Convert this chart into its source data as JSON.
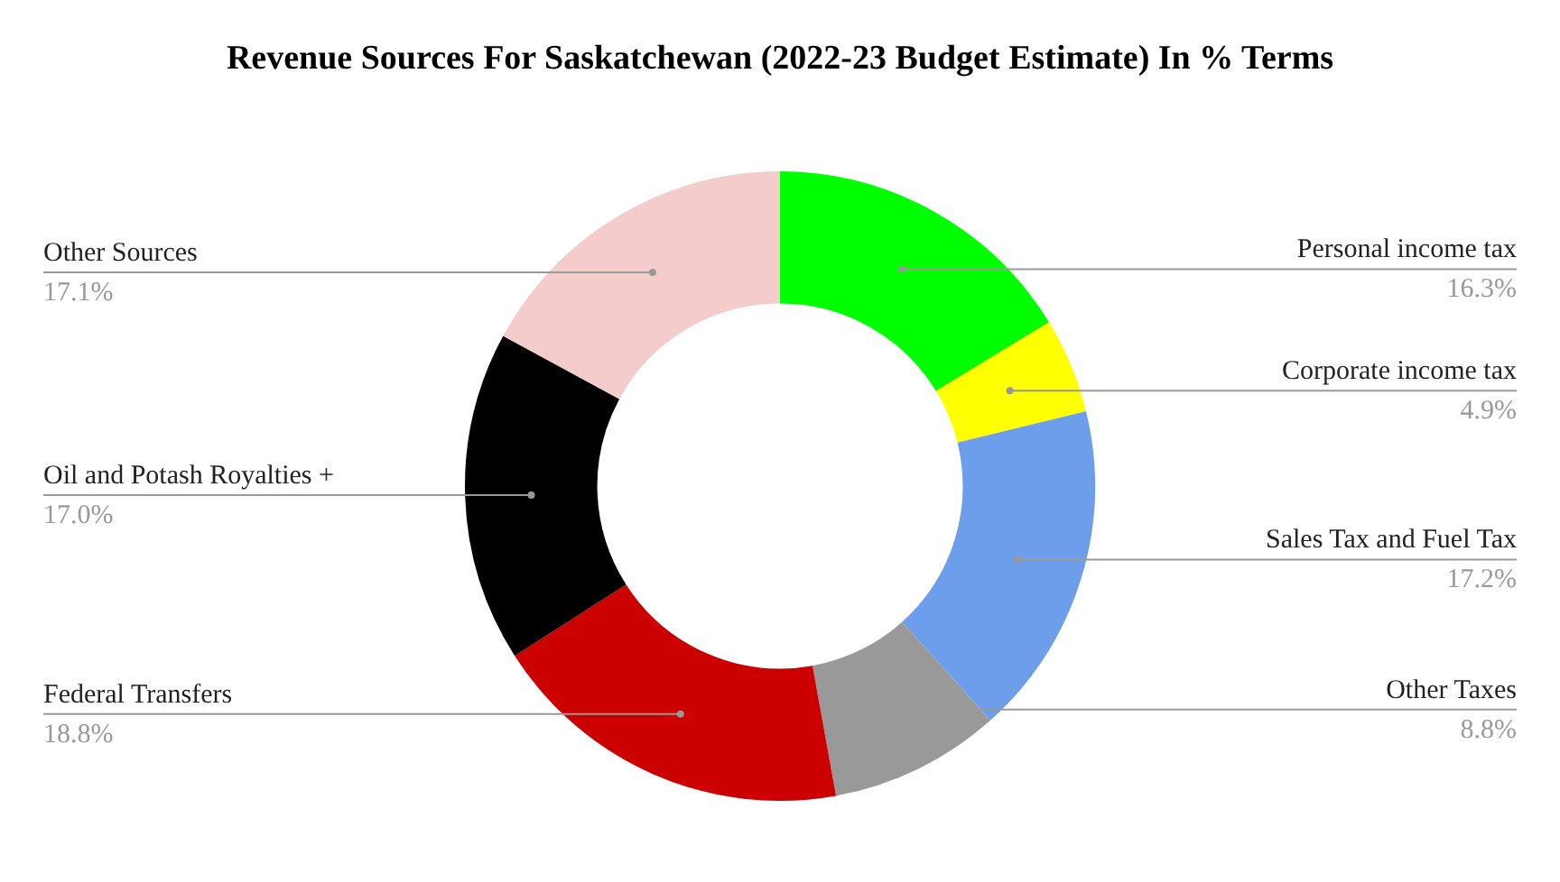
{
  "chart_data": {
    "type": "donut",
    "title": "Revenue Sources For Saskatchewan (2022-23 Budget Estimate)  In % Terms",
    "categories": [
      "Personal income tax",
      "Corporate income tax",
      "Sales Tax and Fuel Tax",
      "Other Taxes",
      "Federal Transfers",
      "Oil and Potash Royalties +",
      "Other Sources"
    ],
    "values": [
      16.3,
      4.9,
      17.2,
      8.8,
      18.8,
      17.0,
      17.1
    ],
    "value_labels": [
      "16.3%",
      "4.9%",
      "17.2%",
      "8.8%",
      "18.8%",
      "17.0%",
      "17.1%"
    ],
    "colors": [
      "#00ff00",
      "#ffff00",
      "#6d9eeb",
      "#999999",
      "#cc0000",
      "#000000",
      "#f4cccc"
    ],
    "legend": false
  }
}
